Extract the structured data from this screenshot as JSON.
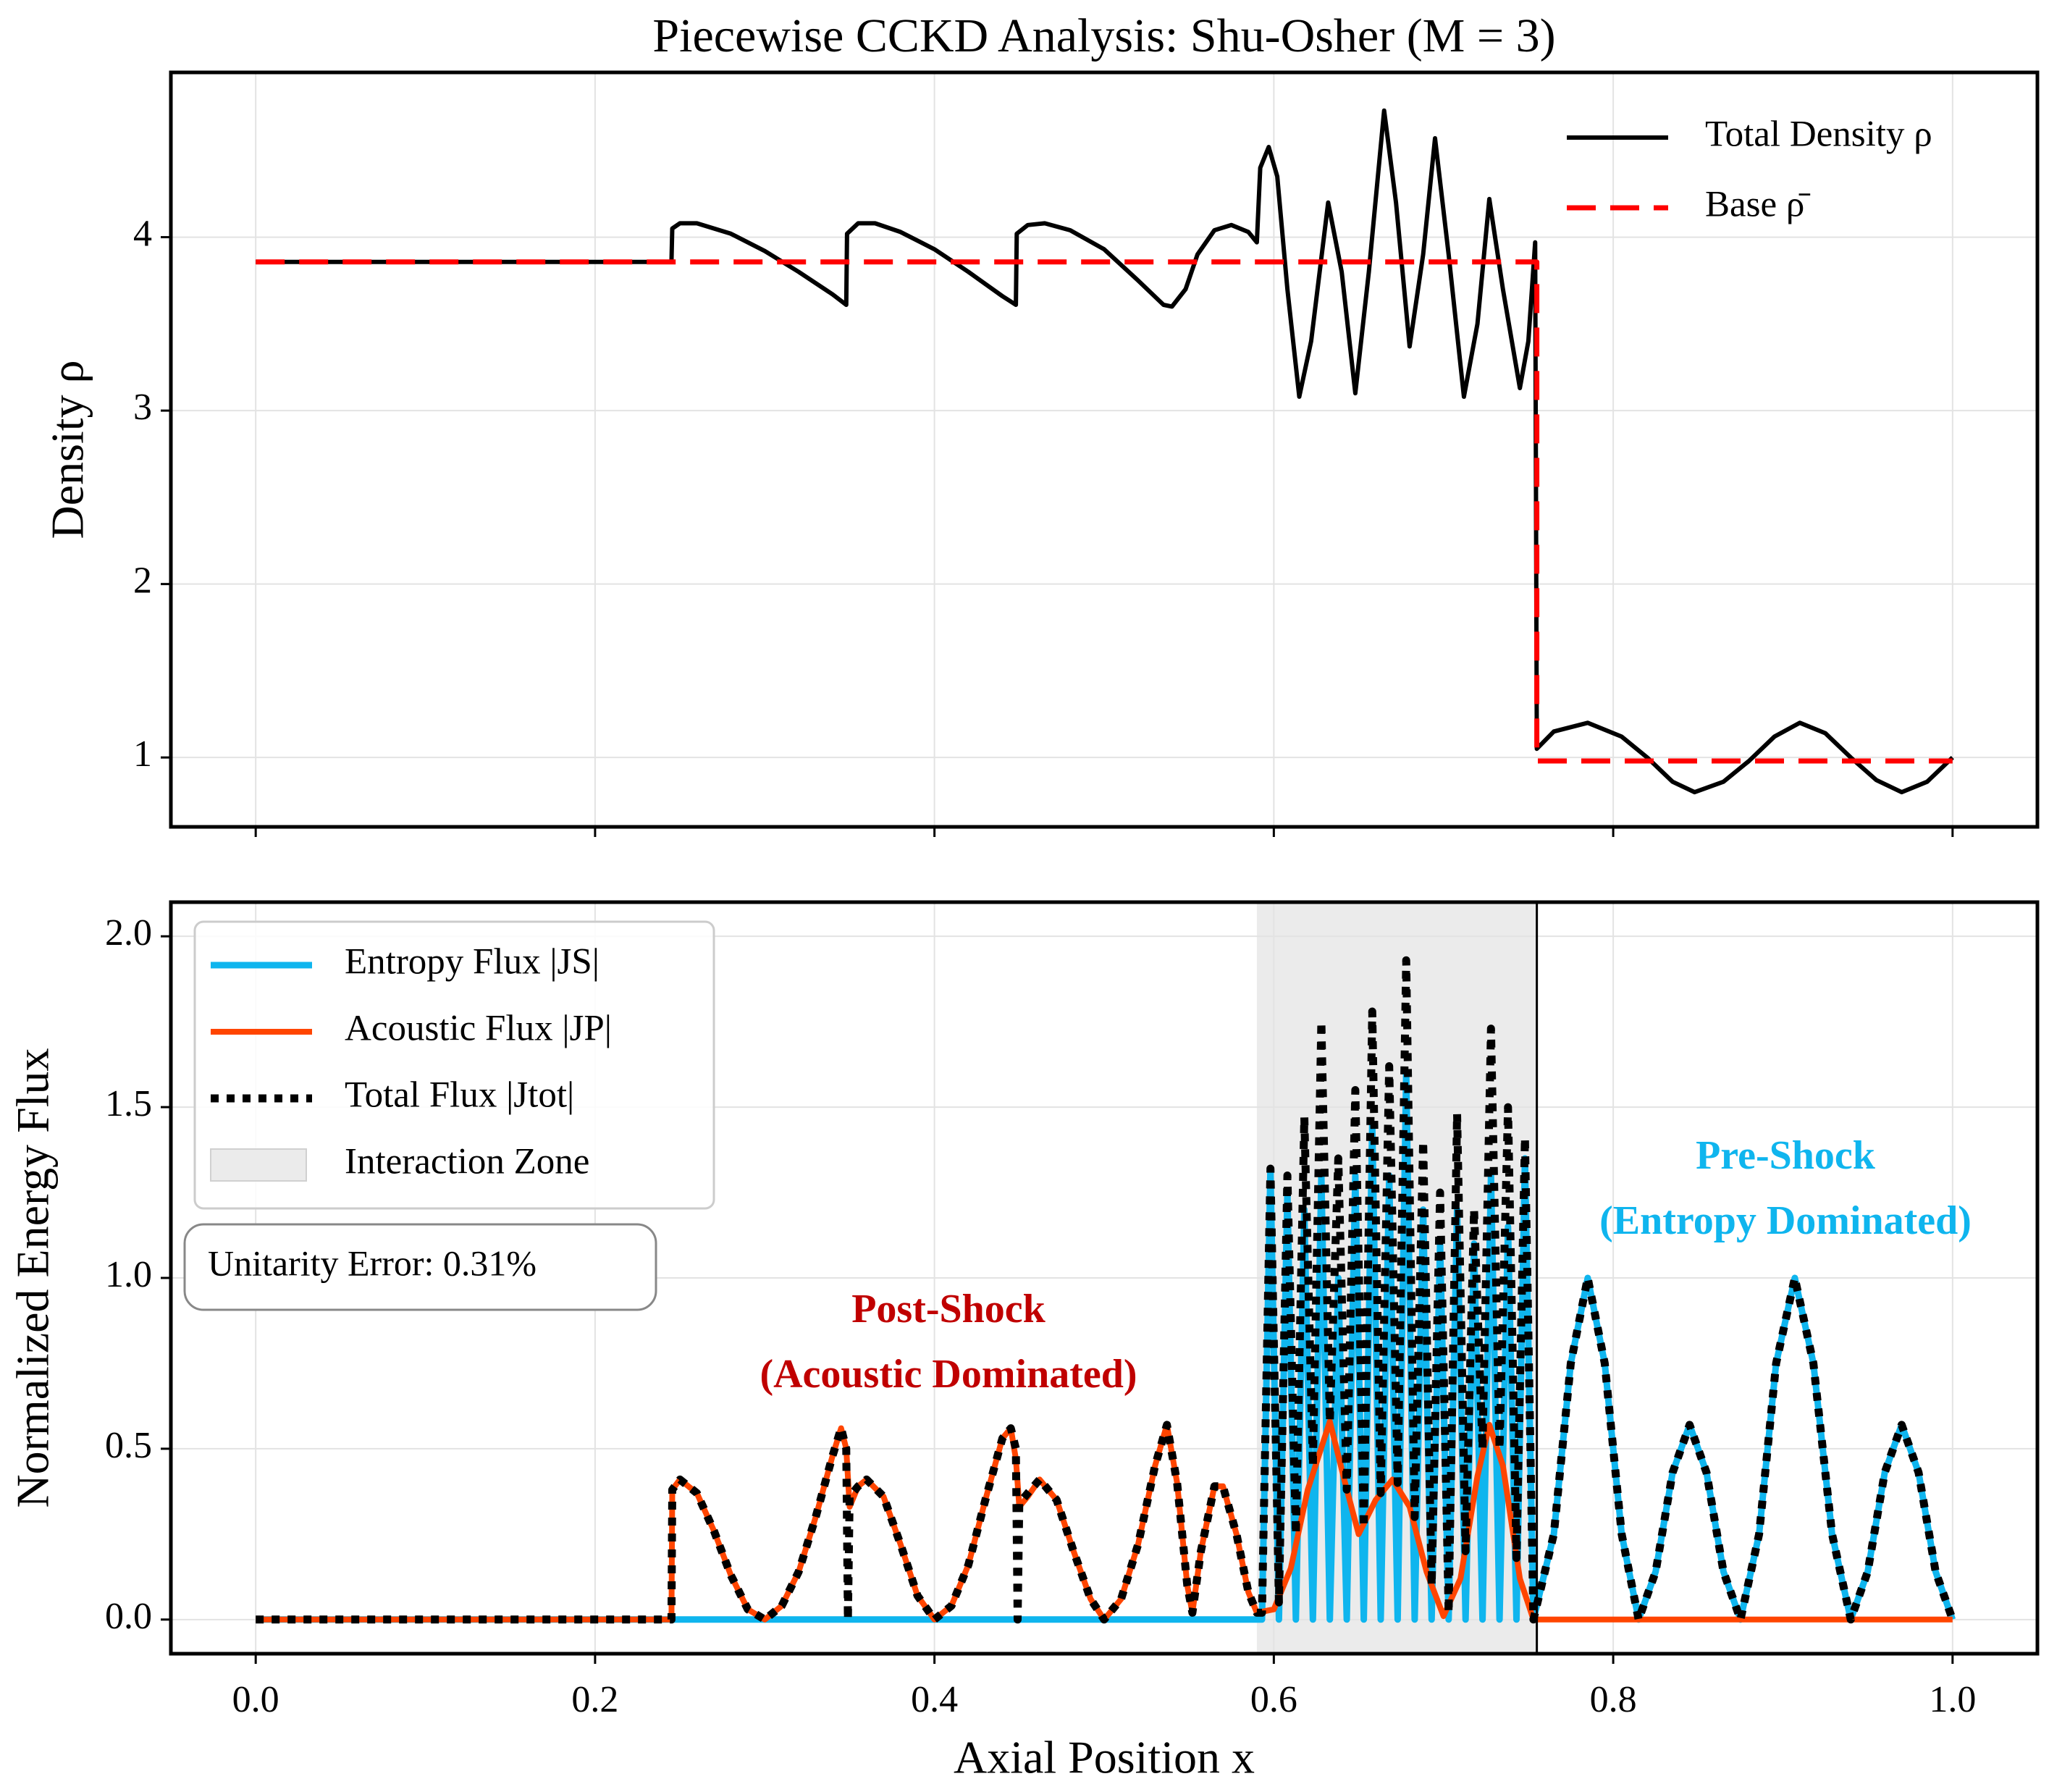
{
  "chart_data": [
    {
      "type": "line",
      "title": "Piecewise CCKD Analysis: Shu-Osher (M = 3)",
      "ylabel": "Density ρ",
      "xlim": [
        -0.05,
        1.05
      ],
      "ylim": [
        0.6,
        4.95
      ],
      "xticks": [
        0,
        0.2,
        0.4,
        0.6,
        0.8,
        1
      ],
      "yticks": [
        1,
        2,
        3,
        4
      ],
      "grid": true,
      "legend": "upper right",
      "legend_frame": false,
      "series": [
        {
          "name": "Total Density ρ",
          "color": "#000000",
          "style": "solid",
          "x": [
            0,
            0.245,
            0.2455,
            0.25,
            0.26,
            0.28,
            0.3,
            0.32,
            0.34,
            0.348,
            0.3485,
            0.355,
            0.365,
            0.38,
            0.4,
            0.42,
            0.44,
            0.448,
            0.4485,
            0.455,
            0.465,
            0.48,
            0.5,
            0.52,
            0.535,
            0.54,
            0.548,
            0.555,
            0.565,
            0.575,
            0.585,
            0.59,
            0.592,
            0.597,
            0.602,
            0.608,
            0.615,
            0.622,
            0.632,
            0.64,
            0.648,
            0.656,
            0.665,
            0.672,
            0.68,
            0.688,
            0.695,
            0.703,
            0.712,
            0.72,
            0.727,
            0.735,
            0.745,
            0.75,
            0.754,
            0.755,
            0.765,
            0.785,
            0.805,
            0.82,
            0.835,
            0.848,
            0.865,
            0.88,
            0.895,
            0.91,
            0.925,
            0.94,
            0.955,
            0.97,
            0.985,
            1.0
          ],
          "values": [
            3.857,
            3.857,
            4.05,
            4.08,
            4.08,
            4.02,
            3.92,
            3.8,
            3.67,
            3.61,
            4.02,
            4.08,
            4.08,
            4.03,
            3.93,
            3.8,
            3.66,
            3.61,
            4.02,
            4.07,
            4.08,
            4.04,
            3.93,
            3.75,
            3.61,
            3.6,
            3.7,
            3.9,
            4.04,
            4.07,
            4.03,
            3.97,
            4.4,
            4.52,
            4.35,
            3.7,
            3.08,
            3.4,
            4.2,
            3.8,
            3.1,
            3.8,
            4.73,
            4.2,
            3.37,
            3.9,
            4.57,
            3.9,
            3.08,
            3.5,
            4.22,
            3.7,
            3.13,
            3.4,
            3.97,
            1.05,
            1.15,
            1.2,
            1.12,
            1.0,
            0.86,
            0.8,
            0.86,
            0.98,
            1.12,
            1.2,
            1.14,
            1.0,
            0.87,
            0.8,
            0.86,
            1.0
          ]
        },
        {
          "name": "Base ρ̄",
          "color": "#ff0000",
          "style": "dashed",
          "x": [
            0,
            0.755,
            0.755,
            1.0
          ],
          "values": [
            3.857,
            3.857,
            0.98,
            0.98
          ]
        }
      ]
    },
    {
      "type": "line",
      "xlabel": "Axial Position x",
      "ylabel": "Normalized Energy Flux",
      "xlim": [
        -0.05,
        1.05
      ],
      "ylim": [
        -0.1,
        2.1
      ],
      "xticks": [
        {
          "value": 0,
          "label": "0.0"
        },
        {
          "value": 0.2,
          "label": "0.2"
        },
        {
          "value": 0.4,
          "label": "0.4"
        },
        {
          "value": 0.6,
          "label": "0.6"
        },
        {
          "value": 0.8,
          "label": "0.8"
        },
        {
          "value": 1,
          "label": "1.0"
        }
      ],
      "yticks": [
        {
          "value": 0,
          "label": "0.0"
        },
        {
          "value": 0.5,
          "label": "0.5"
        },
        {
          "value": 1,
          "label": "1.0"
        },
        {
          "value": 1.5,
          "label": "1.5"
        },
        {
          "value": 2,
          "label": "2.0"
        }
      ],
      "grid": true,
      "legend": "upper left",
      "legend_frame": true,
      "span": {
        "name": "Interaction Zone",
        "x": [
          0.59,
          0.755
        ],
        "color": "#ebebeb"
      },
      "vline": 0.755,
      "textbox": "Unitarity Error: 0.31%",
      "annotations": [
        {
          "lines": [
            "Post-Shock",
            "(Acoustic Dominated)"
          ],
          "color": "#c00000"
        },
        {
          "lines": [
            "Pre-Shock",
            "(Entropy Dominated)"
          ],
          "color": "#0fb5ee"
        }
      ],
      "series": [
        {
          "name": "Entropy Flux |JS|",
          "color": "#0fb5ee",
          "style": "solid",
          "x": [
            0,
            0.593,
            0.598,
            0.603,
            0.608,
            0.613,
            0.618,
            0.623,
            0.628,
            0.633,
            0.638,
            0.643,
            0.648,
            0.653,
            0.658,
            0.663,
            0.668,
            0.673,
            0.678,
            0.683,
            0.688,
            0.693,
            0.698,
            0.703,
            0.708,
            0.713,
            0.718,
            0.723,
            0.728,
            0.733,
            0.738,
            0.743,
            0.748,
            0.753,
            0.765,
            0.775,
            0.785,
            0.795,
            0.805,
            0.815,
            0.825,
            0.835,
            0.845,
            0.855,
            0.865,
            0.875,
            0.886,
            0.896,
            0.907,
            0.918,
            0.929,
            0.94,
            0.95,
            0.96,
            0.97,
            0.98,
            0.99,
            1.0
          ],
          "values": [
            0,
            0,
            1.32,
            0,
            1.25,
            0,
            1.2,
            0,
            1.3,
            0,
            1.0,
            0,
            1.3,
            0,
            1.45,
            0,
            1.3,
            0,
            1.6,
            0,
            1.2,
            0,
            1.1,
            0,
            1.2,
            0,
            1.1,
            0,
            1.3,
            0,
            1.15,
            0,
            1.35,
            0,
            0.25,
            0.75,
            1.0,
            0.75,
            0.25,
            0,
            0.14,
            0.43,
            0.57,
            0.43,
            0.14,
            0,
            0.25,
            0.75,
            1.0,
            0.75,
            0.25,
            0,
            0.14,
            0.43,
            0.57,
            0.43,
            0.14,
            0
          ]
        },
        {
          "name": "Acoustic Flux |JP|",
          "color": "#ff4500",
          "style": "solid",
          "x": [
            0,
            0.245,
            0.2455,
            0.25,
            0.26,
            0.27,
            0.28,
            0.29,
            0.3,
            0.31,
            0.32,
            0.33,
            0.34,
            0.345,
            0.348,
            0.35,
            0.355,
            0.36,
            0.37,
            0.38,
            0.39,
            0.4,
            0.41,
            0.42,
            0.43,
            0.44,
            0.445,
            0.448,
            0.45,
            0.455,
            0.462,
            0.472,
            0.482,
            0.492,
            0.5,
            0.51,
            0.52,
            0.53,
            0.537,
            0.543,
            0.549,
            0.552,
            0.557,
            0.565,
            0.57,
            0.578,
            0.585,
            0.59,
            0.6,
            0.61,
            0.62,
            0.633,
            0.642,
            0.65,
            0.66,
            0.67,
            0.68,
            0.69,
            0.7,
            0.71,
            0.72,
            0.727,
            0.735,
            0.745,
            0.753,
            1.0
          ],
          "values": [
            0,
            0,
            0.38,
            0.41,
            0.37,
            0.26,
            0.13,
            0.03,
            0,
            0.04,
            0.14,
            0.3,
            0.48,
            0.56,
            0.5,
            0.33,
            0.39,
            0.41,
            0.36,
            0.22,
            0.07,
            0,
            0.04,
            0.16,
            0.35,
            0.53,
            0.56,
            0.47,
            0.33,
            0.36,
            0.41,
            0.35,
            0.2,
            0.06,
            0,
            0.06,
            0.22,
            0.45,
            0.57,
            0.4,
            0.1,
            0.02,
            0.2,
            0.39,
            0.39,
            0.25,
            0.08,
            0.02,
            0.03,
            0.15,
            0.38,
            0.58,
            0.4,
            0.25,
            0.35,
            0.41,
            0.33,
            0.14,
            0.01,
            0.12,
            0.42,
            0.57,
            0.45,
            0.12,
            0,
            0
          ]
        },
        {
          "name": "Total Flux |Jtot|",
          "color": "#000000",
          "style": "dotted",
          "x": [
            0,
            0.245,
            0.2455,
            0.25,
            0.26,
            0.27,
            0.28,
            0.29,
            0.3,
            0.31,
            0.32,
            0.33,
            0.34,
            0.345,
            0.348,
            0.349,
            0.35,
            0.355,
            0.36,
            0.37,
            0.38,
            0.39,
            0.4,
            0.41,
            0.42,
            0.43,
            0.44,
            0.445,
            0.448,
            0.449,
            0.45,
            0.455,
            0.462,
            0.472,
            0.482,
            0.492,
            0.5,
            0.51,
            0.52,
            0.53,
            0.537,
            0.543,
            0.549,
            0.552,
            0.557,
            0.565,
            0.57,
            0.578,
            0.585,
            0.59,
            0.593,
            0.598,
            0.603,
            0.608,
            0.613,
            0.618,
            0.623,
            0.628,
            0.633,
            0.638,
            0.643,
            0.648,
            0.653,
            0.658,
            0.663,
            0.668,
            0.673,
            0.678,
            0.683,
            0.688,
            0.693,
            0.698,
            0.703,
            0.708,
            0.713,
            0.718,
            0.723,
            0.728,
            0.733,
            0.738,
            0.743,
            0.748,
            0.753,
            0.765,
            0.775,
            0.785,
            0.795,
            0.805,
            0.815,
            0.825,
            0.835,
            0.845,
            0.855,
            0.865,
            0.875,
            0.886,
            0.896,
            0.907,
            0.918,
            0.929,
            0.94,
            0.95,
            0.96,
            0.97,
            0.98,
            0.99,
            1.0
          ],
          "values": [
            0,
            0,
            0.38,
            0.41,
            0.37,
            0.26,
            0.13,
            0.03,
            0,
            0.04,
            0.14,
            0.3,
            0.48,
            0.56,
            0.5,
            0,
            0.36,
            0.39,
            0.41,
            0.36,
            0.22,
            0.07,
            0,
            0.04,
            0.16,
            0.35,
            0.53,
            0.56,
            0.5,
            0,
            0.34,
            0.37,
            0.41,
            0.35,
            0.2,
            0.06,
            0,
            0.06,
            0.22,
            0.45,
            0.57,
            0.4,
            0.1,
            0.02,
            0.2,
            0.39,
            0.39,
            0.25,
            0.08,
            0.02,
            0.02,
            1.32,
            0.05,
            1.3,
            0.25,
            1.47,
            0.45,
            1.75,
            0.58,
            1.35,
            0.38,
            1.55,
            0.27,
            1.78,
            0.37,
            1.62,
            0.4,
            1.93,
            0.3,
            1.4,
            0.1,
            1.25,
            0.02,
            1.48,
            0.2,
            1.2,
            0.5,
            1.73,
            0.5,
            1.5,
            0.18,
            1.41,
            0,
            0.25,
            0.75,
            1.0,
            0.75,
            0.25,
            0,
            0.14,
            0.43,
            0.57,
            0.43,
            0.14,
            0,
            0.25,
            0.75,
            1.0,
            0.75,
            0.25,
            0,
            0.14,
            0.43,
            0.57,
            0.43,
            0.14,
            0
          ]
        }
      ]
    }
  ]
}
